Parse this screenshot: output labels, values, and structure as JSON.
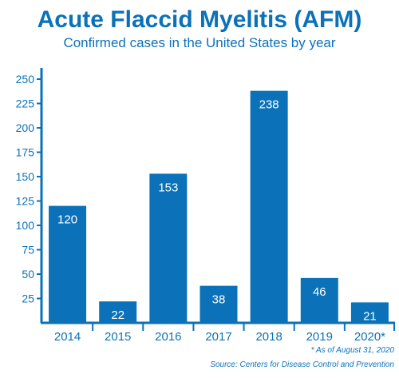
{
  "chart_data": {
    "type": "bar",
    "title": "Acute Flaccid Myelitis (AFM)",
    "subtitle": "Confirmed cases in the United States by year",
    "categories": [
      "2014",
      "2015",
      "2016",
      "2017",
      "2018",
      "2019",
      "2020*"
    ],
    "values": [
      120,
      22,
      153,
      38,
      238,
      46,
      21
    ],
    "y_ticks": [
      "25",
      "50",
      "75",
      "100",
      "125",
      "150",
      "175",
      "200",
      "225",
      "250"
    ],
    "ylim": [
      0,
      250
    ],
    "xlabel": "",
    "ylabel": "",
    "grid": false,
    "bar_color": "#0b72b9",
    "footnote": "* As of August 31, 2020",
    "source": "Source: Centers for Disease Control and Prevention"
  }
}
